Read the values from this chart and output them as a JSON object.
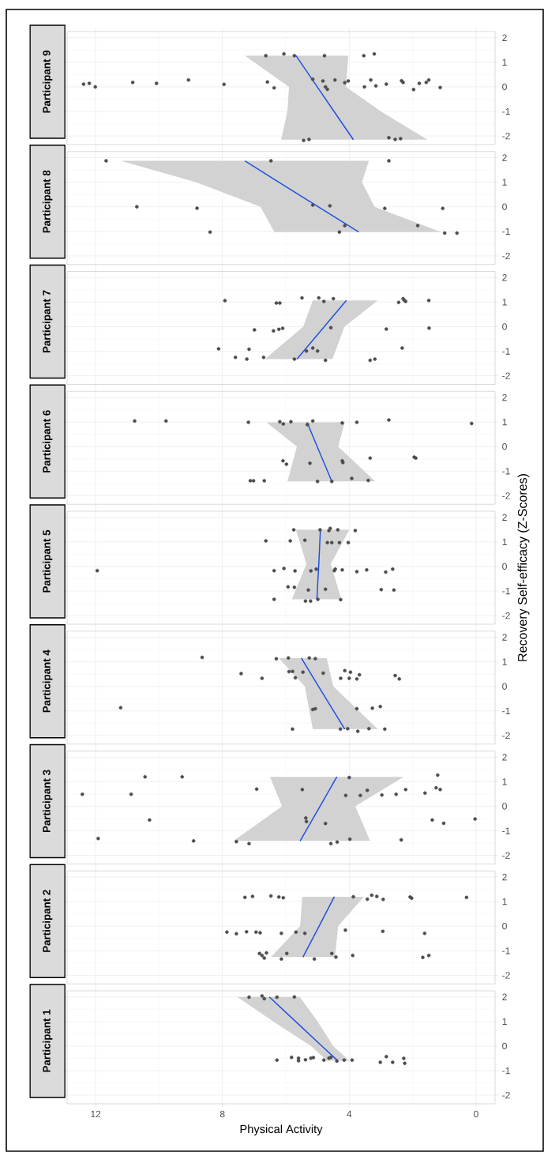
{
  "chart_data": [
    {
      "type": "scatter",
      "orientation": "horizontal",
      "title": "Participant 1",
      "xlabel": "Physical Activity",
      "xlim": [
        12.9,
        -0.6
      ],
      "ylim": [
        -2.35,
        2.25
      ],
      "xticks": [
        0,
        4,
        8,
        12
      ],
      "yticks": [
        -2,
        -1,
        0,
        1,
        2
      ],
      "grid": true,
      "series": [
        {
          "type": "scatter",
          "color": "#4d4d4d",
          "marker": "circle",
          "x": [
            -0.57,
            -0.46,
            -0.49,
            -0.6,
            -0.56,
            -0.49,
            -0.47,
            -0.57,
            -0.49,
            -0.46,
            -0.61,
            -0.57,
            -0.57,
            -0.66,
            -0.43,
            -0.66,
            -0.5,
            -0.7,
            1.99,
            2.04,
            1.93,
            1.99,
            2.0
          ],
          "values": [
            6.28,
            5.82,
            5.6,
            5.6,
            5.38,
            5.21,
            5.13,
            4.8,
            4.64,
            4.58,
            4.39,
            4.16,
            3.91,
            3.02,
            2.83,
            2.63,
            2.28,
            2.25,
            7.16,
            6.75,
            6.68,
            6.28,
            5.73
          ]
        },
        {
          "type": "line",
          "color": "#1f4fe0",
          "x": [
            -0.6,
            0,
            1,
            2
          ],
          "values": [
            4.36,
            4.86,
            5.69,
            6.52
          ],
          "lower": [
            4.0,
            4.5,
            5.0,
            5.56
          ],
          "upper": [
            4.7,
            5.2,
            6.4,
            7.53
          ]
        }
      ]
    },
    {
      "type": "scatter",
      "orientation": "horizontal",
      "title": "Participant 2",
      "tick_labels": "y",
      "xlim": [
        12.9,
        -0.6
      ],
      "ylim": [
        -2.35,
        2.25
      ],
      "xticks": [
        0,
        4,
        8,
        12
      ],
      "yticks": [
        -2,
        -1,
        0,
        1,
        2
      ],
      "grid": true,
      "series": [
        {
          "type": "scatter",
          "color": "#4d4d4d",
          "marker": "circle",
          "x": [
            1.17,
            1.21,
            1.23,
            1.19,
            1.16,
            1.2,
            1.1,
            1.26,
            1.21,
            1.09,
            1.19,
            1.14,
            1.17,
            -0.24,
            -0.31,
            -0.23,
            -0.24,
            -0.27,
            -0.29,
            -0.24,
            -0.29,
            -0.16,
            -0.21,
            -0.29,
            -1.11,
            -1.19,
            -1.3,
            -1.09,
            -1.34,
            -1.11,
            -1.34,
            -1.11,
            -1.26,
            -1.19,
            -1.27,
            -1.19
          ],
          "values": [
            7.29,
            7.05,
            6.47,
            6.22,
            6.08,
            3.87,
            3.43,
            3.29,
            3.13,
            2.93,
            2.08,
            2.03,
            0.3,
            7.86,
            7.56,
            7.24,
            6.94,
            6.81,
            6.14,
            5.68,
            5.4,
            4.12,
            2.94,
            1.62,
            6.83,
            6.75,
            6.68,
            6.61,
            6.14,
            5.97,
            5.1,
            4.55,
            4.42,
            3.89,
            1.68,
            1.49
          ]
        },
        {
          "type": "line",
          "color": "#1f4fe0",
          "x": [
            -1.26,
            0,
            1.2
          ],
          "values": [
            5.46,
            4.95,
            4.47
          ],
          "lower": [
            4.45,
            4.35,
            3.54
          ],
          "upper": [
            6.47,
            5.55,
            5.48
          ]
        }
      ]
    },
    {
      "type": "scatter",
      "orientation": "horizontal",
      "title": "Participant 3",
      "tick_labels": "y",
      "xlim": [
        12.9,
        -0.6
      ],
      "ylim": [
        -2.35,
        2.25
      ],
      "xticks": [
        0,
        4,
        8,
        12
      ],
      "yticks": [
        -2,
        -1,
        0,
        1,
        2
      ],
      "grid": true,
      "series": [
        {
          "type": "scatter",
          "color": "#4d4d4d",
          "marker": "circle",
          "x": [
            0.49,
            -1.31,
            0.49,
            1.2,
            -0.56,
            1.2,
            -1.41,
            -1.44,
            -1.52,
            0.7,
            0.68,
            -0.48,
            -0.62,
            -0.7,
            -1.52,
            -1.46,
            0.44,
            1.17,
            -1.34,
            0.44,
            0.65,
            0.46,
            0.49,
            -1.37,
            0.68,
            0.54,
            -0.56,
            0.75,
            1.27,
            0.68,
            -0.69,
            -0.52
          ],
          "values": [
            12.42,
            11.92,
            10.88,
            10.44,
            10.3,
            9.27,
            8.91,
            7.56,
            7.16,
            6.92,
            5.48,
            5.37,
            5.35,
            4.75,
            4.58,
            4.38,
            4.11,
            4.0,
            3.98,
            3.65,
            3.43,
            2.97,
            2.52,
            2.36,
            2.22,
            1.61,
            1.38,
            1.26,
            1.21,
            1.13,
            1.02,
            0.03
          ]
        },
        {
          "type": "line",
          "color": "#1f4fe0",
          "x": [
            -1.41,
            0,
            1.2
          ],
          "values": [
            5.55,
            4.92,
            4.39
          ],
          "lower": [
            3.34,
            3.81,
            2.28
          ],
          "upper": [
            7.65,
            6.12,
            6.5
          ]
        }
      ]
    },
    {
      "type": "scatter",
      "orientation": "horizontal",
      "title": "Participant 4",
      "tick_labels": "y",
      "xlim": [
        12.9,
        -0.6
      ],
      "ylim": [
        -2.35,
        2.25
      ],
      "xticks": [
        0,
        4,
        8,
        12
      ],
      "yticks": [
        -2,
        -1,
        0,
        1,
        2
      ],
      "grid": true,
      "series": [
        {
          "type": "scatter",
          "color": "#4d4d4d",
          "marker": "circle",
          "x": [
            1.18,
            0.52,
            0.33,
            1.12,
            1.16,
            0.6,
            0.61,
            0.35,
            0.58,
            1.16,
            1.13,
            0.54,
            0.33,
            0.64,
            0.58,
            0.33,
            0.3,
            0.47,
            0.44,
            0.3,
            -0.87,
            -0.94,
            -0.91,
            -0.91,
            -0.89,
            -0.82,
            -1.74,
            -1.74,
            -1.72,
            -1.83,
            -1.72,
            -1.74
          ],
          "values": [
            8.64,
            7.41,
            6.75,
            6.3,
            5.92,
            5.9,
            5.79,
            5.7,
            5.46,
            5.26,
            5.07,
            4.82,
            4.27,
            4.14,
            3.96,
            4.0,
            3.76,
            3.68,
            2.55,
            2.42,
            11.21,
            5.15,
            5.07,
            3.76,
            3.27,
            3.02,
            5.79,
            4.28,
            4.05,
            3.73,
            3.38,
            2.88
          ]
        },
        {
          "type": "line",
          "color": "#1f4fe0",
          "x": [
            -1.74,
            0,
            1.15
          ],
          "values": [
            4.14,
            4.97,
            5.51
          ],
          "lower": [
            3.1,
            4.5,
            4.71
          ],
          "upper": [
            5.15,
            5.4,
            6.22
          ]
        }
      ]
    },
    {
      "type": "scatter",
      "orientation": "horizontal",
      "title": "Participant 5",
      "ylabel": "Recovery Self-efficacy (Z-Scores)",
      "tick_labels": "y",
      "xlim": [
        12.9,
        -0.6
      ],
      "ylim": [
        -2.35,
        2.25
      ],
      "xticks": [
        0,
        4,
        8,
        12
      ],
      "yticks": [
        -2,
        -1,
        0,
        1,
        2
      ],
      "grid": true,
      "series": [
        {
          "type": "scatter",
          "color": "#4d4d4d",
          "marker": "circle",
          "x": [
            -0.17,
            1.04,
            -0.17,
            -1.34,
            -0.08,
            -0.83,
            1.04,
            1.49,
            -0.85,
            -0.18,
            1.07,
            -1.41,
            -0.96,
            -1.41,
            -0.18,
            -0.11,
            -1.34,
            1.49,
            -0.93,
            0.97,
            1.46,
            1.55,
            0.97,
            -0.17,
            -0.11,
            1.49,
            0.97,
            -1.35,
            -0.14,
            0.97,
            1.46,
            -0.21,
            -0.14,
            -0.94,
            -0.23,
            -0.11,
            -0.96
          ],
          "values": [
            11.95,
            6.63,
            6.37,
            6.37,
            6.06,
            5.93,
            5.86,
            5.75,
            5.73,
            5.71,
            5.4,
            5.38,
            5.29,
            5.22,
            5.21,
            5.04,
            4.99,
            4.92,
            4.75,
            4.69,
            4.64,
            4.6,
            4.55,
            4.47,
            4.44,
            4.36,
            4.31,
            4.27,
            4.22,
            4.03,
            3.81,
            3.76,
            3.45,
            2.99,
            2.85,
            2.63,
            2.59
          ]
        },
        {
          "type": "line",
          "color": "#1f4fe0",
          "x": [
            -1.34,
            0.1,
            1.49
          ],
          "values": [
            5.02,
            4.96,
            4.91
          ],
          "lower": [
            4.25,
            4.58,
            4.0
          ],
          "upper": [
            5.81,
            5.35,
            5.68
          ]
        }
      ]
    },
    {
      "type": "scatter",
      "orientation": "horizontal",
      "title": "Participant 6",
      "tick_labels": "y",
      "xlim": [
        12.9,
        -0.6
      ],
      "ylim": [
        -2.35,
        2.25
      ],
      "xticks": [
        0,
        4,
        8,
        12
      ],
      "yticks": [
        -2,
        -1,
        0,
        1,
        2
      ],
      "grid": true,
      "series": [
        {
          "type": "scatter",
          "color": "#4d4d4d",
          "marker": "circle",
          "x": [
            1.04,
            1.04,
            0.99,
            1.01,
            0.92,
            1.01,
            0.89,
            1.04,
            0.96,
            0.99,
            1.08,
            0.94,
            -0.58,
            -0.72,
            -0.68,
            -0.58,
            -0.65,
            -0.47,
            -0.43,
            -0.47,
            -1.39,
            -1.39,
            -1.39,
            -1.42,
            -1.42,
            -1.3,
            -1.38
          ],
          "values": [
            10.77,
            9.78,
            7.18,
            6.19,
            6.08,
            5.84,
            5.32,
            5.15,
            4.22,
            3.76,
            2.75,
            0.14,
            6.09,
            5.98,
            5.24,
            4.22,
            4.2,
            3.34,
            1.95,
            1.9,
            7.12,
            7.02,
            6.68,
            5.0,
            4.55,
            3.92,
            3.4
          ]
        },
        {
          "type": "line",
          "color": "#1f4fe0",
          "x": [
            -1.42,
            0,
            0.99
          ],
          "values": [
            4.55,
            5.01,
            5.33
          ],
          "lower": [
            3.18,
            4.35,
            4.14
          ],
          "upper": [
            5.95,
            5.65,
            6.61
          ]
        }
      ]
    },
    {
      "type": "scatter",
      "orientation": "horizontal",
      "title": "Participant 7",
      "tick_labels": "y",
      "xlim": [
        12.9,
        -0.6
      ],
      "ylim": [
        -2.35,
        2.25
      ],
      "xticks": [
        0,
        4,
        8,
        12
      ],
      "yticks": [
        -2,
        -1,
        0,
        1,
        2
      ],
      "grid": true,
      "series": [
        {
          "type": "scatter",
          "color": "#4d4d4d",
          "marker": "circle",
          "x": [
            1.06,
            -0.9,
            -1.25,
            -1.32,
            -0.92,
            -0.13,
            -1.25,
            -0.17,
            0.96,
            0.96,
            -0.11,
            -0.07,
            -1.32,
            1.17,
            -0.99,
            -0.87,
            -0.99,
            1.17,
            1.03,
            -1.37,
            -0.04,
            1.14,
            -1.37,
            -1.32,
            -0.1,
            0.99,
            -0.87,
            1.14,
            1.07,
            1.03,
            1.07,
            -0.06
          ],
          "values": [
            7.92,
            8.12,
            7.59,
            7.23,
            7.16,
            6.99,
            6.7,
            6.39,
            6.3,
            6.19,
            6.22,
            6.1,
            5.73,
            5.49,
            5.35,
            5.15,
            5.0,
            4.96,
            4.8,
            4.75,
            4.58,
            4.5,
            3.34,
            3.19,
            2.83,
            2.44,
            2.33,
            2.3,
            2.26,
            2.22,
            1.49,
            1.48
          ]
        },
        {
          "type": "line",
          "color": "#1f4fe0",
          "x": [
            -1.32,
            0,
            1.07
          ],
          "values": [
            5.65,
            4.79,
            4.09
          ],
          "lower": [
            4.53,
            4.15,
            3.1
          ],
          "upper": [
            6.66,
            5.45,
            5.15
          ]
        }
      ]
    },
    {
      "type": "scatter",
      "orientation": "horizontal",
      "title": "Participant 8",
      "tick_labels": "y",
      "xlim": [
        12.9,
        -0.6
      ],
      "ylim": [
        -2.35,
        2.25
      ],
      "xticks": [
        0,
        4,
        8,
        12
      ],
      "yticks": [
        -2,
        -1,
        0,
        1,
        2
      ],
      "grid": true,
      "series": [
        {
          "type": "scatter",
          "color": "#4d4d4d",
          "marker": "circle",
          "x": [
            1.87,
            1.87,
            1.87,
            0,
            -0.06,
            0.07,
            0.04,
            -0.07,
            -0.07,
            -1.03,
            -1.03,
            -0.77,
            -0.77,
            -1.07,
            -1.07
          ],
          "values": [
            11.67,
            6.47,
            2.75,
            10.7,
            8.8,
            5.15,
            4.61,
            2.88,
            1.05,
            8.39,
            4.31,
            4.14,
            1.84,
            0.99,
            0.6
          ]
        },
        {
          "type": "line",
          "color": "#1f4fe0",
          "x": [
            -1.03,
            0,
            1,
            1.87
          ],
          "values": [
            3.7,
            4.98,
            6.22,
            7.29
          ],
          "lower": [
            1.1,
            3.2,
            3.6,
            3.38
          ],
          "upper": [
            6.36,
            6.8,
            8.84,
            11.21
          ]
        }
      ]
    },
    {
      "type": "scatter",
      "orientation": "horizontal",
      "title": "Participant 9",
      "tick_labels": "y",
      "xlim": [
        12.9,
        -0.6
      ],
      "ylim": [
        -2.35,
        2.25
      ],
      "xticks": [
        0,
        4,
        8,
        12
      ],
      "yticks": [
        -2,
        -1,
        0,
        1,
        2
      ],
      "grid": true,
      "series": [
        {
          "type": "scatter",
          "color": "#4d4d4d",
          "marker": "circle",
          "x": [
            0.11,
            0.14,
            0,
            0.18,
            0.14,
            0.28,
            0.1,
            1.27,
            0.2,
            -0.04,
            1.34,
            1.27,
            -2.18,
            -2.14,
            0.31,
            0.24,
            1.27,
            0,
            -0.1,
            0.28,
            0.17,
            0.24,
            1.27,
            0,
            0.28,
            1.34,
            0.04,
            0.11,
            -2.07,
            -2.14,
            -2.11,
            0.25,
            0.18,
            -0.11,
            0.14,
            0.18,
            0.28,
            -0.03
          ],
          "values": [
            12.38,
            12.2,
            12.01,
            10.83,
            10.08,
            9.07,
            7.95,
            6.63,
            6.58,
            6.37,
            6.06,
            5.73,
            5.44,
            5.27,
            5.15,
            4.83,
            4.78,
            4.75,
            4.69,
            4.45,
            4.14,
            4.03,
            3.54,
            3.52,
            3.32,
            3.21,
            3.16,
            2.83,
            2.75,
            2.55,
            2.38,
            2.35,
            2.3,
            1.97,
            1.79,
            1.57,
            1.49,
            1.13
          ]
        },
        {
          "type": "line",
          "color": "#1f4fe0",
          "x": [
            -2.15,
            -1,
            0,
            1.27
          ],
          "values": [
            3.87,
            4.48,
            5.01,
            5.68
          ],
          "lower": [
            1.53,
            3.0,
            4.1,
            4.03
          ],
          "upper": [
            6.15,
            5.95,
            5.9,
            7.29
          ]
        }
      ]
    }
  ]
}
